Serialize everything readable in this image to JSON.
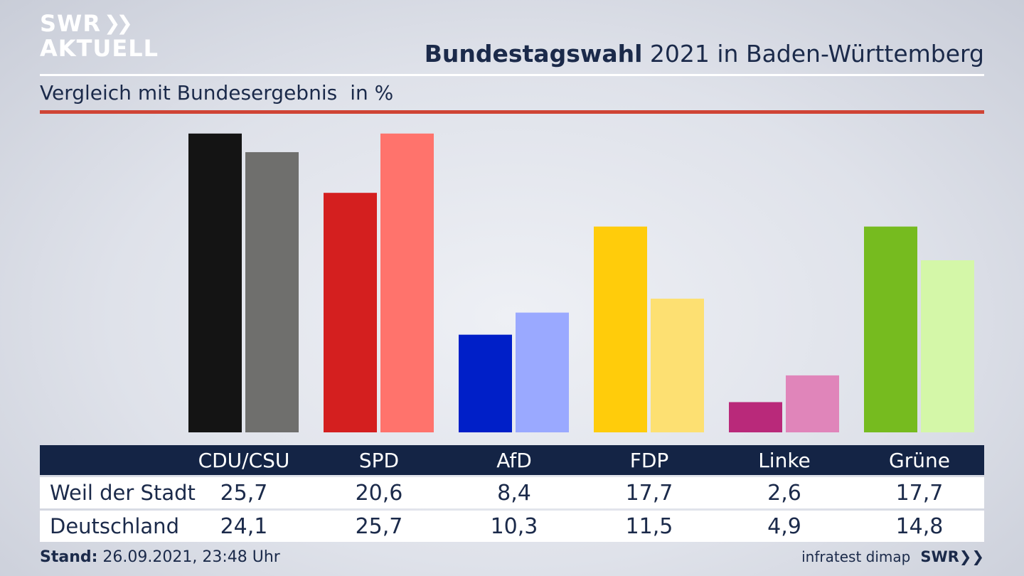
{
  "header": {
    "logo_line1": "SWR",
    "logo_line2": "AKTUELL",
    "title_bold": "Bundestagswahl",
    "title_rest": " 2021 in Baden-Württemberg",
    "subtitle": "Vergleich mit Bundesergebnis",
    "unit": "in %"
  },
  "chart_data": {
    "type": "bar",
    "title": "Bundestagswahl 2021 in Baden-Württemberg",
    "subtitle": "Vergleich mit Bundesergebnis",
    "unit": "in %",
    "categories": [
      "CDU/CSU",
      "SPD",
      "AfD",
      "FDP",
      "Linke",
      "Grüne"
    ],
    "series": [
      {
        "name": "Weil der Stadt",
        "values": [
          25.7,
          20.6,
          8.4,
          17.7,
          2.6,
          17.7
        ],
        "colors": [
          "#141414",
          "#d41f1f",
          "#001fc8",
          "#ffcc0b",
          "#b9297a",
          "#76bb1f"
        ]
      },
      {
        "name": "Deutschland",
        "values": [
          24.1,
          25.7,
          10.3,
          11.5,
          4.9,
          14.8
        ],
        "colors": [
          "#6f6f6d",
          "#ff736c",
          "#9aa9ff",
          "#fde072",
          "#e085ba",
          "#d4f7a8"
        ]
      }
    ]
  },
  "table": {
    "headers": [
      "CDU/CSU",
      "SPD",
      "AfD",
      "FDP",
      "Linke",
      "Grüne"
    ],
    "rows": [
      {
        "label": "Weil der Stadt",
        "values": [
          "25,7",
          "20,6",
          "8,4",
          "17,7",
          "2,6",
          "17,7"
        ]
      },
      {
        "label": "Deutschland",
        "values": [
          "24,1",
          "25,7",
          "10,3",
          "11,5",
          "4,9",
          "14,8"
        ]
      }
    ]
  },
  "footer": {
    "stand_label": "Stand:",
    "stand_value": " 26.09.2021, 23:48 Uhr",
    "source": "infratest dimap",
    "brand": "SWR"
  }
}
